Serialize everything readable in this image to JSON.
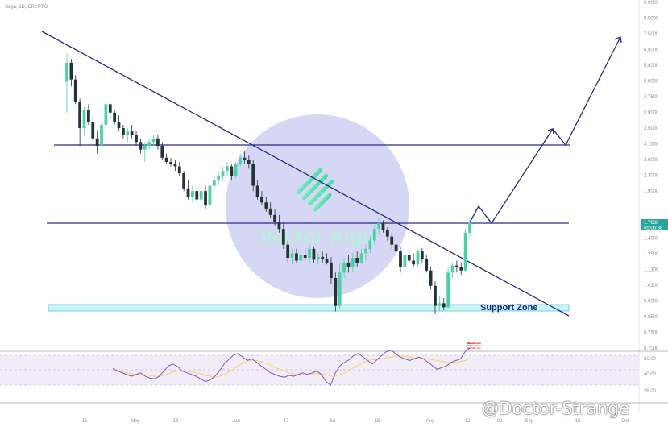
{
  "header": {
    "title": "Saga, 1D, CRYPTO"
  },
  "watermark": {
    "logo_text": "Vector Algo",
    "author": "@Doctor-Strange"
  },
  "annotations": {
    "support_zone": "Support Zone"
  },
  "price_tag": {
    "price": "1.7836",
    "countdown": "05:06:38"
  },
  "colors": {
    "bull": "#26a69a",
    "bull_light": "#4dd0a6",
    "bear": "#263238",
    "lines": "#2b2a8c",
    "zone_fill": "#c9f3f6",
    "zone_border": "#6fd6e0",
    "rsi": "#7e57c2",
    "rsi_ma": "#f5d75a",
    "rsi_band": "#ede7f6",
    "watermark_circle": "#c7c9f2"
  },
  "chart_data": {
    "type": "candlestick",
    "y_axis": {
      "scale": "log",
      "tick_labels": [
        "9.9000",
        "8.5000",
        "7.5000",
        "6.5000",
        "5.8000",
        "5.0000",
        "4.7500",
        "3.9000",
        "3.5000",
        "3.1000",
        "2.6000",
        "2.3000",
        "1.9000",
        "1.7836",
        "1.5500",
        "1.4000",
        "1.2500",
        "1.1300",
        "1.0300",
        "0.9300",
        "0.8500",
        "0.7500",
        "0.7000"
      ]
    },
    "x_axis": {
      "tick_labels": [
        "15",
        "May",
        "13",
        "Jun",
        "17",
        "Jul",
        "15",
        "Aug",
        "12",
        "22",
        "Sep",
        "16",
        "Oct"
      ]
    },
    "candles": [
      {
        "o": 5.5,
        "h": 6.9,
        "l": 4.3,
        "c": 6.4
      },
      {
        "o": 6.4,
        "h": 6.6,
        "l": 5.3,
        "c": 5.6
      },
      {
        "o": 5.6,
        "h": 5.8,
        "l": 4.6,
        "c": 4.7
      },
      {
        "o": 4.7,
        "h": 4.8,
        "l": 3.3,
        "c": 3.8
      },
      {
        "o": 3.8,
        "h": 4.5,
        "l": 3.6,
        "c": 4.4
      },
      {
        "o": 4.4,
        "h": 4.6,
        "l": 3.9,
        "c": 4.0
      },
      {
        "o": 4.0,
        "h": 4.2,
        "l": 3.4,
        "c": 3.5
      },
      {
        "o": 3.5,
        "h": 3.7,
        "l": 3.1,
        "c": 3.3
      },
      {
        "o": 3.3,
        "h": 4.0,
        "l": 3.25,
        "c": 3.9
      },
      {
        "o": 3.9,
        "h": 4.8,
        "l": 3.8,
        "c": 4.6
      },
      {
        "o": 4.6,
        "h": 4.7,
        "l": 4.1,
        "c": 4.3
      },
      {
        "o": 4.3,
        "h": 4.4,
        "l": 3.9,
        "c": 4.0
      },
      {
        "o": 4.0,
        "h": 4.2,
        "l": 3.7,
        "c": 3.8
      },
      {
        "o": 3.8,
        "h": 3.9,
        "l": 3.5,
        "c": 3.6
      },
      {
        "o": 3.6,
        "h": 3.8,
        "l": 3.4,
        "c": 3.7
      },
      {
        "o": 3.7,
        "h": 3.9,
        "l": 3.5,
        "c": 3.6
      },
      {
        "o": 3.6,
        "h": 3.7,
        "l": 3.3,
        "c": 3.4
      },
      {
        "o": 3.4,
        "h": 3.5,
        "l": 3.1,
        "c": 3.2
      },
      {
        "o": 3.2,
        "h": 3.4,
        "l": 2.9,
        "c": 3.3
      },
      {
        "o": 3.3,
        "h": 3.5,
        "l": 3.2,
        "c": 3.4
      },
      {
        "o": 3.4,
        "h": 3.6,
        "l": 3.3,
        "c": 3.5
      },
      {
        "o": 3.5,
        "h": 3.6,
        "l": 3.2,
        "c": 3.3
      },
      {
        "o": 3.3,
        "h": 3.4,
        "l": 2.95,
        "c": 3.0
      },
      {
        "o": 3.0,
        "h": 3.1,
        "l": 2.85,
        "c": 2.9
      },
      {
        "o": 2.9,
        "h": 3.0,
        "l": 2.8,
        "c": 2.85
      },
      {
        "o": 2.85,
        "h": 2.95,
        "l": 2.7,
        "c": 2.8
      },
      {
        "o": 2.8,
        "h": 2.9,
        "l": 2.6,
        "c": 2.65
      },
      {
        "o": 2.65,
        "h": 2.7,
        "l": 2.3,
        "c": 2.35
      },
      {
        "o": 2.35,
        "h": 2.5,
        "l": 2.15,
        "c": 2.2
      },
      {
        "o": 2.2,
        "h": 2.4,
        "l": 2.1,
        "c": 2.3
      },
      {
        "o": 2.3,
        "h": 2.4,
        "l": 2.1,
        "c": 2.15
      },
      {
        "o": 2.15,
        "h": 2.35,
        "l": 2.05,
        "c": 2.3
      },
      {
        "o": 2.3,
        "h": 2.4,
        "l": 2.0,
        "c": 2.05
      },
      {
        "o": 2.05,
        "h": 2.5,
        "l": 2.0,
        "c": 2.4
      },
      {
        "o": 2.4,
        "h": 2.6,
        "l": 2.3,
        "c": 2.5
      },
      {
        "o": 2.5,
        "h": 2.7,
        "l": 2.4,
        "c": 2.6
      },
      {
        "o": 2.6,
        "h": 2.8,
        "l": 2.5,
        "c": 2.7
      },
      {
        "o": 2.7,
        "h": 2.9,
        "l": 2.6,
        "c": 2.8
      },
      {
        "o": 2.8,
        "h": 2.85,
        "l": 2.5,
        "c": 2.6
      },
      {
        "o": 2.6,
        "h": 2.9,
        "l": 2.55,
        "c": 2.85
      },
      {
        "o": 2.85,
        "h": 3.1,
        "l": 2.8,
        "c": 3.0
      },
      {
        "o": 3.0,
        "h": 3.15,
        "l": 2.85,
        "c": 2.95
      },
      {
        "o": 2.95,
        "h": 3.05,
        "l": 2.75,
        "c": 2.85
      },
      {
        "o": 2.85,
        "h": 2.95,
        "l": 2.3,
        "c": 2.4
      },
      {
        "o": 2.4,
        "h": 2.5,
        "l": 2.15,
        "c": 2.2
      },
      {
        "o": 2.2,
        "h": 2.3,
        "l": 2.05,
        "c": 2.1
      },
      {
        "o": 2.1,
        "h": 2.2,
        "l": 1.95,
        "c": 2.0
      },
      {
        "o": 2.0,
        "h": 2.1,
        "l": 1.85,
        "c": 1.9
      },
      {
        "o": 1.9,
        "h": 2.0,
        "l": 1.75,
        "c": 1.8
      },
      {
        "o": 1.8,
        "h": 1.9,
        "l": 1.65,
        "c": 1.7
      },
      {
        "o": 1.7,
        "h": 1.8,
        "l": 1.45,
        "c": 1.5
      },
      {
        "o": 1.5,
        "h": 1.55,
        "l": 1.3,
        "c": 1.35
      },
      {
        "o": 1.35,
        "h": 1.45,
        "l": 1.28,
        "c": 1.4
      },
      {
        "o": 1.4,
        "h": 1.45,
        "l": 1.3,
        "c": 1.32
      },
      {
        "o": 1.32,
        "h": 1.42,
        "l": 1.28,
        "c": 1.38
      },
      {
        "o": 1.38,
        "h": 1.46,
        "l": 1.32,
        "c": 1.35
      },
      {
        "o": 1.35,
        "h": 1.5,
        "l": 1.3,
        "c": 1.45
      },
      {
        "o": 1.45,
        "h": 1.48,
        "l": 1.3,
        "c": 1.33
      },
      {
        "o": 1.33,
        "h": 1.4,
        "l": 1.28,
        "c": 1.36
      },
      {
        "o": 1.36,
        "h": 1.42,
        "l": 1.3,
        "c": 1.34
      },
      {
        "o": 1.34,
        "h": 1.4,
        "l": 1.28,
        "c": 1.3
      },
      {
        "o": 1.3,
        "h": 1.36,
        "l": 1.1,
        "c": 1.15
      },
      {
        "o": 1.15,
        "h": 1.2,
        "l": 0.88,
        "c": 0.92
      },
      {
        "o": 0.92,
        "h": 1.3,
        "l": 0.9,
        "c": 1.2
      },
      {
        "o": 1.2,
        "h": 1.35,
        "l": 1.15,
        "c": 1.3
      },
      {
        "o": 1.3,
        "h": 1.38,
        "l": 1.2,
        "c": 1.25
      },
      {
        "o": 1.25,
        "h": 1.4,
        "l": 1.2,
        "c": 1.35
      },
      {
        "o": 1.35,
        "h": 1.42,
        "l": 1.25,
        "c": 1.3
      },
      {
        "o": 1.3,
        "h": 1.45,
        "l": 1.28,
        "c": 1.4
      },
      {
        "o": 1.4,
        "h": 1.5,
        "l": 1.32,
        "c": 1.45
      },
      {
        "o": 1.45,
        "h": 1.6,
        "l": 1.4,
        "c": 1.55
      },
      {
        "o": 1.55,
        "h": 1.75,
        "l": 1.5,
        "c": 1.7
      },
      {
        "o": 1.7,
        "h": 1.85,
        "l": 1.62,
        "c": 1.78
      },
      {
        "o": 1.78,
        "h": 1.82,
        "l": 1.65,
        "c": 1.68
      },
      {
        "o": 1.68,
        "h": 1.72,
        "l": 1.55,
        "c": 1.6
      },
      {
        "o": 1.6,
        "h": 1.65,
        "l": 1.45,
        "c": 1.5
      },
      {
        "o": 1.5,
        "h": 1.55,
        "l": 1.38,
        "c": 1.42
      },
      {
        "o": 1.42,
        "h": 1.48,
        "l": 1.2,
        "c": 1.25
      },
      {
        "o": 1.25,
        "h": 1.4,
        "l": 1.22,
        "c": 1.38
      },
      {
        "o": 1.38,
        "h": 1.45,
        "l": 1.3,
        "c": 1.32
      },
      {
        "o": 1.32,
        "h": 1.4,
        "l": 1.25,
        "c": 1.28
      },
      {
        "o": 1.28,
        "h": 1.44,
        "l": 1.26,
        "c": 1.42
      },
      {
        "o": 1.42,
        "h": 1.46,
        "l": 1.3,
        "c": 1.34
      },
      {
        "o": 1.34,
        "h": 1.38,
        "l": 1.2,
        "c": 1.22
      },
      {
        "o": 1.22,
        "h": 1.26,
        "l": 1.05,
        "c": 1.08
      },
      {
        "o": 1.08,
        "h": 1.12,
        "l": 0.86,
        "c": 0.92
      },
      {
        "o": 0.92,
        "h": 1.0,
        "l": 0.88,
        "c": 0.94
      },
      {
        "o": 0.94,
        "h": 0.98,
        "l": 0.89,
        "c": 0.91
      },
      {
        "o": 0.91,
        "h": 1.25,
        "l": 0.9,
        "c": 1.2
      },
      {
        "o": 1.2,
        "h": 1.3,
        "l": 1.15,
        "c": 1.27
      },
      {
        "o": 1.27,
        "h": 1.32,
        "l": 1.2,
        "c": 1.25
      },
      {
        "o": 1.25,
        "h": 1.3,
        "l": 1.18,
        "c": 1.22
      },
      {
        "o": 1.22,
        "h": 1.7,
        "l": 1.2,
        "c": 1.65
      },
      {
        "o": 1.65,
        "h": 1.85,
        "l": 1.6,
        "c": 1.8
      }
    ],
    "rsi": {
      "tick_labels": [
        "60.00",
        "40.00",
        "26.00"
      ],
      "values": [
        45,
        42,
        40,
        38,
        36,
        38,
        40,
        36,
        34,
        33,
        36,
        42,
        48,
        50,
        47,
        42,
        40,
        38,
        36,
        33,
        30,
        32,
        36,
        42,
        50,
        55,
        60,
        62,
        58,
        54,
        56,
        52,
        48,
        44,
        40,
        38,
        36,
        35,
        37,
        36,
        38,
        40,
        38,
        40,
        42,
        38,
        30,
        26,
        40,
        48,
        52,
        55,
        60,
        62,
        58,
        54,
        50,
        55,
        60,
        64,
        66,
        62,
        58,
        56,
        54,
        56,
        58,
        56,
        52,
        48,
        44,
        46,
        48,
        52,
        54,
        56,
        64,
        68
      ],
      "ma_values": [
        42,
        42,
        41,
        40,
        39,
        38,
        38,
        38,
        37,
        36,
        36,
        37,
        39,
        41,
        42,
        42,
        42,
        41,
        40,
        39,
        37,
        36,
        35,
        36,
        38,
        41,
        44,
        48,
        51,
        53,
        54,
        54,
        53,
        51,
        49,
        46,
        44,
        42,
        40,
        39,
        38,
        38,
        38,
        39,
        39,
        39,
        38,
        36,
        36,
        38,
        40,
        43,
        46,
        49,
        52,
        54,
        55,
        55,
        56,
        57,
        58,
        59,
        59,
        59,
        58,
        57,
        57,
        57,
        56,
        55,
        54,
        53,
        52,
        52,
        52,
        53,
        54,
        56
      ]
    }
  }
}
